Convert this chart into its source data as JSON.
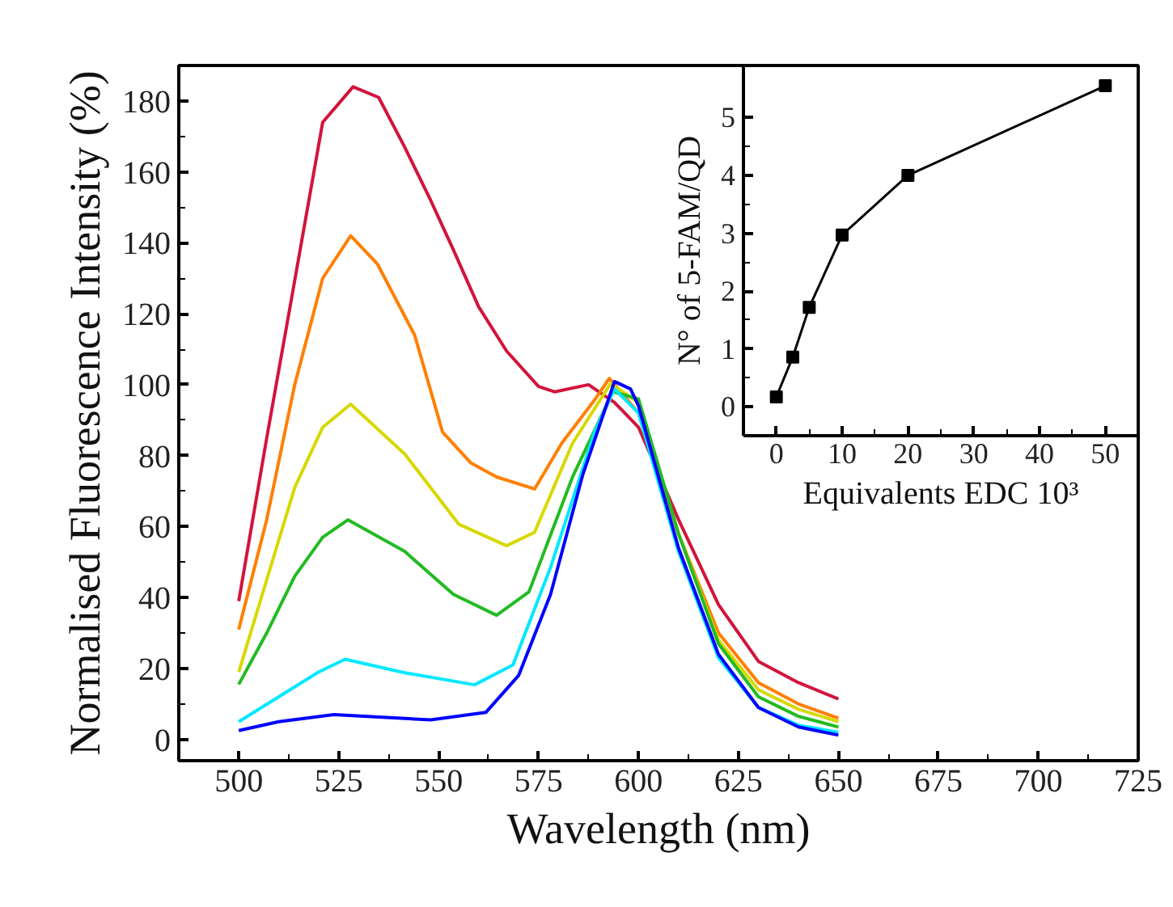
{
  "chart_data": [
    {
      "type": "line",
      "xlabel": "Wavelength (nm)",
      "ylabel": "Normalised Fluorescence Intensity (%)",
      "xlim": [
        485,
        725
      ],
      "ylim": [
        -6,
        190
      ],
      "xticks": [
        500,
        525,
        550,
        575,
        600,
        625,
        650,
        675,
        700,
        725
      ],
      "yticks": [
        0,
        20,
        40,
        60,
        80,
        100,
        120,
        140,
        160,
        180
      ],
      "grid": false,
      "marker": "none",
      "line_style": "solid",
      "series": [
        {
          "color": "#d2143c",
          "x": [
            500,
            507,
            513,
            521,
            528.6,
            535,
            541.5,
            548,
            553.7,
            560,
            567,
            575,
            579,
            587.5,
            594,
            600,
            610,
            620,
            630,
            640,
            650
          ],
          "values": [
            39,
            85,
            123,
            174,
            184,
            181,
            167,
            152,
            138,
            122,
            109.5,
            99.5,
            98,
            100,
            95,
            88,
            62,
            38,
            22,
            16,
            11.4
          ]
        },
        {
          "color": "#ff7f00",
          "x": [
            500,
            507,
            514,
            521,
            528,
            534.7,
            544,
            551,
            558,
            564.5,
            574,
            580.8,
            589,
            592.7,
            600,
            610,
            620,
            630,
            640,
            650
          ],
          "values": [
            31,
            62,
            100,
            130,
            142,
            134,
            114,
            86.6,
            78,
            74,
            70.6,
            83.5,
            95.7,
            101.8,
            92,
            58,
            30,
            16,
            10,
            6
          ]
        },
        {
          "color": "#d8d800",
          "x": [
            500,
            507,
            514,
            521,
            528,
            541.5,
            555,
            567,
            574,
            583.5,
            593,
            600,
            610,
            620,
            630,
            640,
            650
          ],
          "values": [
            19,
            45,
            71,
            88,
            94.5,
            80.5,
            60.7,
            54.6,
            58.4,
            83.5,
            100.3,
            95,
            58,
            28,
            14,
            8.5,
            5
          ]
        },
        {
          "color": "#22bb22",
          "x": [
            500,
            507,
            514,
            521,
            527.3,
            541.5,
            553.7,
            564.5,
            572.6,
            583.5,
            593.6,
            600,
            610,
            620,
            630,
            640,
            650
          ],
          "values": [
            15.5,
            30,
            46,
            57,
            61.9,
            53,
            40.9,
            35,
            41.6,
            74,
            98,
            96,
            58,
            27,
            12,
            6.5,
            3.5
          ]
        },
        {
          "color": "#00e8ff",
          "x": [
            500,
            510,
            520,
            526.6,
            541.5,
            559,
            568.6,
            578,
            589,
            594,
            600,
            610,
            620,
            630,
            640,
            650
          ],
          "values": [
            5,
            12,
            19,
            22.6,
            18.8,
            15.4,
            21,
            48.5,
            86.6,
            98.8,
            92,
            53,
            23,
            9,
            4,
            2
          ]
        },
        {
          "color": "#0000ff",
          "x": [
            500,
            510,
            523.8,
            548,
            561.8,
            570,
            578,
            586,
            594,
            598,
            600,
            610,
            620,
            630,
            640,
            650
          ],
          "values": [
            2.5,
            5,
            7,
            5.5,
            7.6,
            18,
            40.9,
            74.4,
            100.9,
            98.8,
            94,
            54,
            24,
            9,
            3.5,
            1.2
          ]
        }
      ]
    },
    {
      "type": "line",
      "xlabel": "Equivalents EDC 10³",
      "ylabel": "N° of 5-FAM/QD",
      "xlim": [
        -5,
        55
      ],
      "ylim": [
        -0.5,
        5.9
      ],
      "xticks": [
        0,
        10,
        20,
        30,
        40,
        50
      ],
      "yticks": [
        0,
        1,
        2,
        3,
        4,
        5
      ],
      "grid": false,
      "marker": "square",
      "line_style": "solid",
      "series": [
        {
          "color": "#000000",
          "x": [
            0,
            2.5,
            5,
            10,
            20,
            50
          ],
          "values": [
            0.17,
            0.86,
            1.72,
            2.97,
            4.0,
            5.55
          ]
        }
      ]
    }
  ]
}
